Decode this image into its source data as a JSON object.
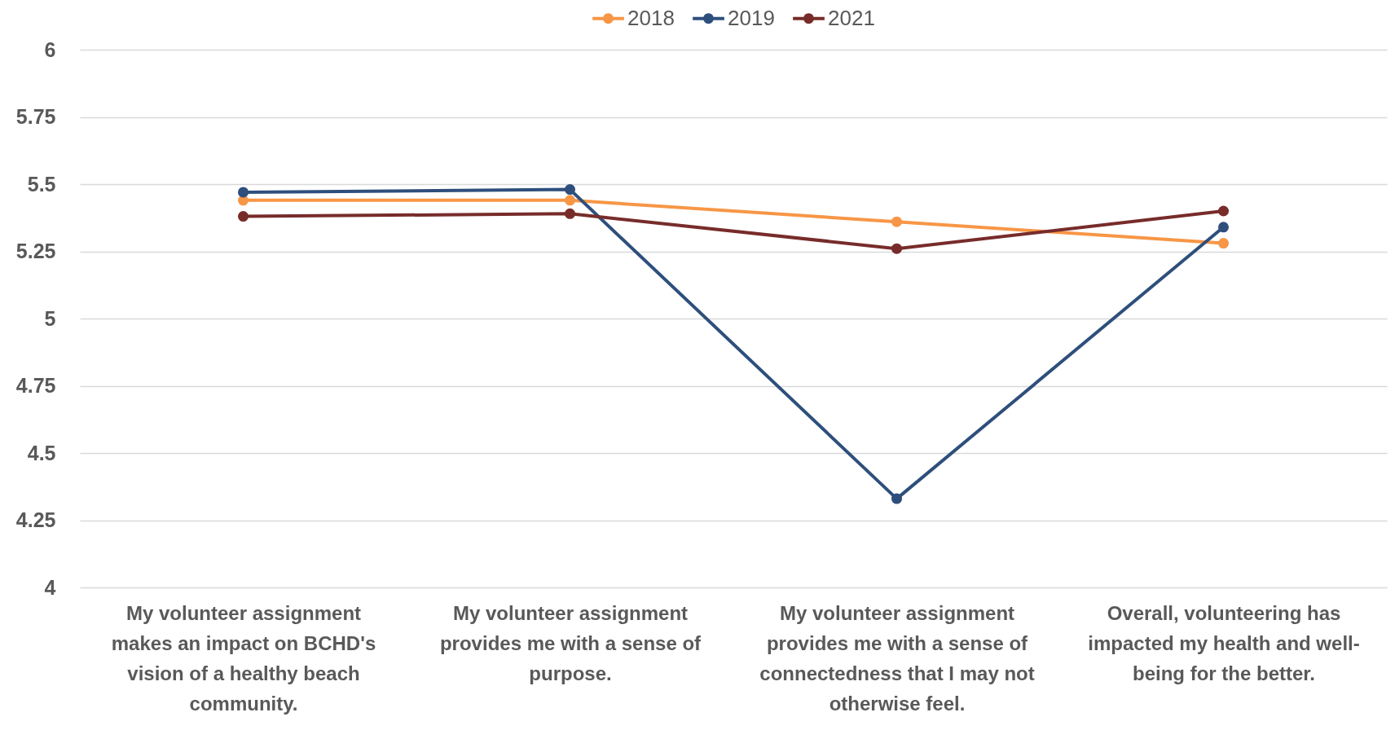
{
  "chart_data": {
    "type": "line",
    "categories": [
      "My volunteer assignment makes an impact on BCHD's vision of a healthy beach community.",
      "My volunteer assignment provides me with a sense of purpose.",
      "My volunteer assignment provides me with a sense of connectedness that I may not otherwise feel.",
      "Overall, volunteering has impacted my health and well-being for the better."
    ],
    "series": [
      {
        "name": "2018",
        "color": "#f79646",
        "values": [
          5.44,
          5.44,
          5.36,
          5.28
        ]
      },
      {
        "name": "2019",
        "color": "#2e4f7c",
        "values": [
          5.47,
          5.48,
          4.33,
          5.34
        ]
      },
      {
        "name": "2021",
        "color": "#772c2a",
        "values": [
          5.38,
          5.39,
          5.26,
          5.4
        ]
      }
    ],
    "ylim": [
      4,
      6
    ],
    "yticks": [
      4,
      4.25,
      4.5,
      4.75,
      5,
      5.25,
      5.5,
      5.75,
      6
    ],
    "grid": "y",
    "legend": "top",
    "marker": "circle",
    "line_style": "solid"
  }
}
